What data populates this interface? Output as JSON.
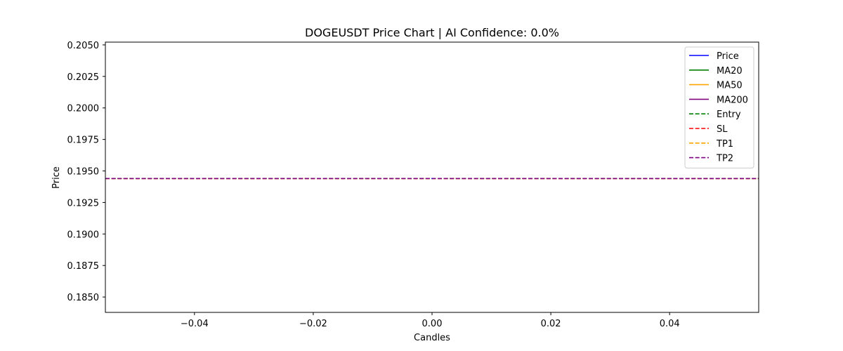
{
  "chart_data": {
    "type": "line",
    "title": "DOGEUSDT Price Chart | AI Confidence: 0.0%",
    "xlabel": "Candles",
    "ylabel": "Price",
    "xlim": [
      -0.055,
      0.055
    ],
    "ylim": [
      0.18378,
      0.20522
    ],
    "x_ticks": [
      -0.04,
      -0.02,
      0.0,
      0.02,
      0.04
    ],
    "x_tick_labels": [
      "−0.04",
      "−0.02",
      "0.00",
      "0.02",
      "0.04"
    ],
    "y_ticks": [
      0.185,
      0.1875,
      0.19,
      0.1925,
      0.195,
      0.1975,
      0.2,
      0.2025,
      0.205
    ],
    "y_tick_labels": [
      "0.1850",
      "0.1875",
      "0.1900",
      "0.1925",
      "0.1950",
      "0.1975",
      "0.2000",
      "0.2025",
      "0.2050"
    ],
    "grid": false,
    "legend_position": "upper right",
    "series": [
      {
        "name": "Price",
        "color": "#0000ff",
        "style": "solid",
        "x": [
          0
        ],
        "y": [
          0.1944
        ]
      },
      {
        "name": "MA20",
        "color": "#008000",
        "style": "solid",
        "x": [],
        "y": []
      },
      {
        "name": "MA50",
        "color": "#ffa500",
        "style": "solid",
        "x": [],
        "y": []
      },
      {
        "name": "MA200",
        "color": "#800080",
        "style": "solid",
        "x": [],
        "y": []
      }
    ],
    "hlines": [
      {
        "name": "Entry",
        "color": "#008000",
        "style": "dashed",
        "y": 0.1944
      },
      {
        "name": "SL",
        "color": "#ff0000",
        "style": "dashed",
        "y": 0.1944
      },
      {
        "name": "TP1",
        "color": "#ffa500",
        "style": "dashed",
        "y": 0.1944
      },
      {
        "name": "TP2",
        "color": "#800080",
        "style": "dashed",
        "y": 0.1944
      }
    ]
  }
}
